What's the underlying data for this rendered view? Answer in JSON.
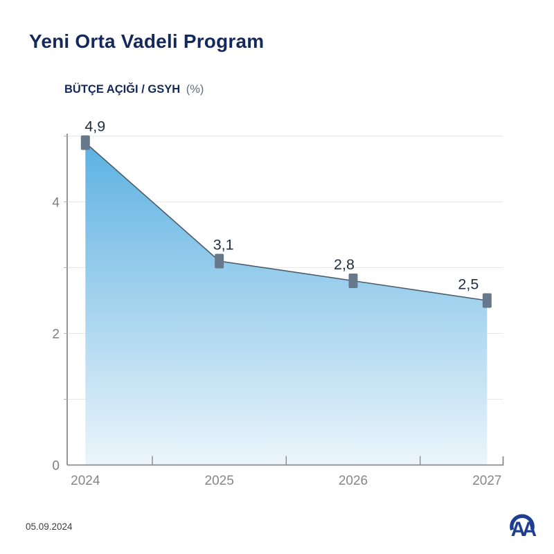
{
  "header": {
    "title": "Yeni Orta Vadeli Program"
  },
  "chart": {
    "subtitle": "BÜTÇE AÇIĞI / GSYH",
    "subtitle_unit": "(%)"
  },
  "chart_data": {
    "type": "area",
    "title": "Yeni Orta Vadeli Program",
    "subtitle": "BÜTÇE AÇIĞI / GSYH (%)",
    "categories": [
      "2024",
      "2025",
      "2026",
      "2027"
    ],
    "values": [
      4.9,
      3.1,
      2.8,
      2.5
    ],
    "value_labels": [
      "4,9",
      "3,1",
      "2,8",
      "2,5"
    ],
    "xlabel": "",
    "ylabel": "BÜTÇE AÇIĞI / GSYH (%)",
    "ylim": [
      0,
      5.05
    ],
    "ytick_values": [
      0,
      1,
      2,
      3,
      4,
      5
    ],
    "ytick_labeled": [
      0,
      2,
      4
    ],
    "grid": true,
    "legend": "none",
    "colors": {
      "area_top": "#5cb1e1",
      "area_bottom": "#ecf5fb",
      "line": "#4d5c6b",
      "marker": "#66788a",
      "value_label": "#1f2d3f",
      "grid_line": "#e8e8e8",
      "axis": "#8a8a8a",
      "tick_label": "#7d7d7d",
      "xtick_label": "#868686"
    }
  },
  "footer": {
    "date": "05.09.2024",
    "logo_alt": "AA"
  },
  "colors": {
    "title_navy": "#14295a",
    "logo_blue": "#1d3e92",
    "background": "#ffffff"
  }
}
